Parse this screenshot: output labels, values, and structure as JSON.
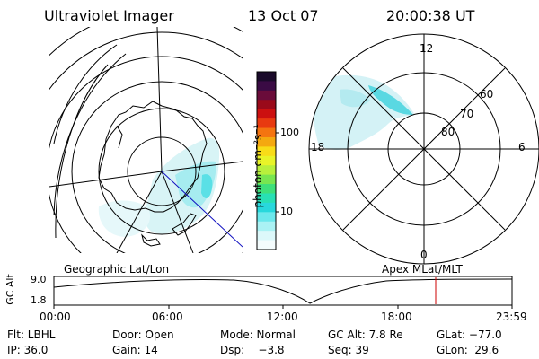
{
  "header": {
    "instrument": "Ultraviolet Imager",
    "date": "13 Oct 07",
    "time": "20:00:38 UT"
  },
  "left_panel": {
    "caption": "Geographic Lat/Lon"
  },
  "right_panel": {
    "caption": "Apex MLat/MLT",
    "mlt_labels": {
      "top": "12",
      "bottom": "0",
      "left": "18",
      "right": "6"
    },
    "lat_labels": [
      "60",
      "70",
      "80"
    ]
  },
  "colorbar": {
    "unit_label": "photon cm⁻²s⁻¹",
    "tick_100": "100",
    "tick_10": "10",
    "colors": [
      "#1a0a2a",
      "#3a0b44",
      "#6a0c3a",
      "#9a0a1a",
      "#cc1010",
      "#e83a10",
      "#f47410",
      "#f4a810",
      "#f8dc18",
      "#e8f428",
      "#b8f03c",
      "#78e650",
      "#3ee07a",
      "#28e0b4",
      "#28d8dc",
      "#6ce8ec",
      "#aaf2f4",
      "#dcf8fa",
      "#f4fcfd"
    ]
  },
  "time_plot": {
    "ylabel": "GC Alt",
    "y_ticks": [
      "9.0",
      "1.8"
    ],
    "x_ticks": [
      "00:00",
      "06:00",
      "12:00",
      "18:00",
      "23:59"
    ],
    "marker_color": "#cc0000"
  },
  "info": {
    "row1": [
      "Flt: LBHL",
      "Door: Open",
      "Mode: Normal",
      "GC Alt: 7.8 Re",
      "GLat: −77.0"
    ],
    "row2": [
      "IP: 36.0",
      "Gain: 14",
      "Dsp:    −3.8",
      "Seq: 39",
      "GLon:  29.6"
    ]
  }
}
